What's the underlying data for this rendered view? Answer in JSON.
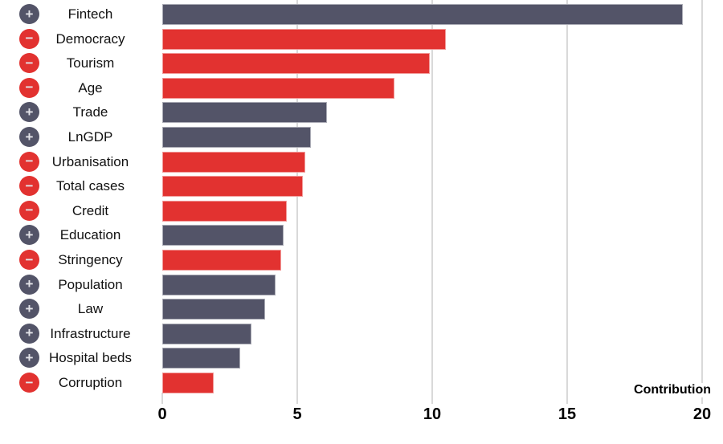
{
  "chart_data": {
    "type": "bar",
    "orientation": "horizontal",
    "title": "",
    "xlabel": "Contribution",
    "xlim": [
      0,
      20
    ],
    "xticks": [
      0,
      5,
      10,
      15,
      20
    ],
    "grid": true,
    "legend": false,
    "categories": [
      "Fintech",
      "Democracy",
      "Tourism",
      "Age",
      "Trade",
      "LnGDP",
      "Urbanisation",
      "Total cases",
      "Credit",
      "Education",
      "Stringency",
      "Population",
      "Law",
      "Infrastructure",
      "Hospital beds",
      "Corruption"
    ],
    "values": [
      19.3,
      10.5,
      9.9,
      8.6,
      6.1,
      5.5,
      5.3,
      5.2,
      4.6,
      4.5,
      4.4,
      4.2,
      3.8,
      3.3,
      2.9,
      1.9
    ],
    "signs": [
      "+",
      "−",
      "−",
      "−",
      "+",
      "+",
      "−",
      "−",
      "−",
      "+",
      "−",
      "+",
      "+",
      "+",
      "+",
      "−"
    ],
    "sign_meanings": {
      "+": "positive factor",
      "−": "negative factor"
    },
    "colors": {
      "positive_bar": "#535468",
      "negative_bar": "#e23230",
      "gridline": "#d9d9d9",
      "sign_glyph": "#e3e3e8",
      "text": "#111111"
    }
  }
}
